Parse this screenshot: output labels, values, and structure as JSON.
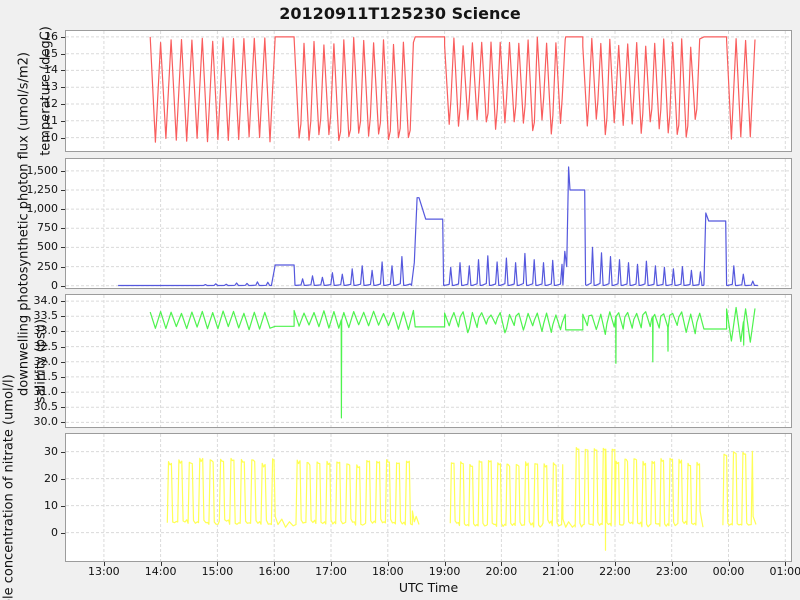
{
  "chart_data": {
    "type": "line",
    "title": "20120911T125230 Science",
    "xlabel": "UTC Time",
    "grid": true,
    "legend": "none",
    "colors": {
      "background": "#f0f0f0",
      "panel": "#ffffff",
      "grid": "#dadada",
      "border": "#9c9c9c",
      "text": "#111111"
    },
    "xlim_minutes": [
      20,
      786
    ],
    "x_ticks": [
      {
        "label": "13:00",
        "minutes": 60
      },
      {
        "label": "14:00",
        "minutes": 120
      },
      {
        "label": "15:00",
        "minutes": 180
      },
      {
        "label": "16:00",
        "minutes": 240
      },
      {
        "label": "17:00",
        "minutes": 300
      },
      {
        "label": "18:00",
        "minutes": 360
      },
      {
        "label": "19:00",
        "minutes": 420
      },
      {
        "label": "20:00",
        "minutes": 480
      },
      {
        "label": "21:00",
        "minutes": 540
      },
      {
        "label": "22:00",
        "minutes": 600
      },
      {
        "label": "23:00",
        "minutes": 660
      },
      {
        "label": "00:00",
        "minutes": 720
      },
      {
        "label": "01:00",
        "minutes": 780
      }
    ],
    "subplots": [
      {
        "id": "temperature",
        "ylabel": "temperature (degC)",
        "color": "#f95d5d",
        "ylim": [
          9.2,
          16.35
        ],
        "yticks": {
          "labels": [
            "16",
            "15",
            "14",
            "13",
            "12",
            "11",
            "10"
          ],
          "values": [
            16,
            15,
            14,
            13,
            12,
            11,
            10
          ]
        },
        "segments": [
          {
            "type": "osc",
            "t0": 109,
            "t1": 241,
            "period": 11,
            "hi": 16,
            "lo": 9.7,
            "jhi": 0.35,
            "jlo": 0.35
          },
          {
            "type": "flat",
            "t0": 241,
            "t1": 261,
            "v": 16
          },
          {
            "type": "osc",
            "t0": 261,
            "t1": 389,
            "period": 10.5,
            "hi": 16,
            "lo": 9.8,
            "jhi": 0.5,
            "jlo": 0.6,
            "mid": 0.8
          },
          {
            "type": "flat",
            "t0": 389,
            "t1": 420,
            "v": 16
          },
          {
            "type": "osc",
            "t0": 420,
            "t1": 548,
            "period": 9.8,
            "hi": 16,
            "lo": 10.2,
            "jhi": 0.6,
            "jlo": 0.9,
            "mid": 1.0
          },
          {
            "type": "flat",
            "t0": 548,
            "t1": 566,
            "v": 16
          },
          {
            "type": "osc",
            "t0": 566,
            "t1": 694,
            "period": 9.5,
            "hi": 16,
            "lo": 10.0,
            "jhi": 0.7,
            "jlo": 1.1,
            "mid": 1.1
          },
          {
            "type": "flat",
            "t0": 694,
            "t1": 718,
            "v": 16
          },
          {
            "type": "osc",
            "t0": 718,
            "t1": 752,
            "period": 10,
            "hi": 16,
            "lo": 9.8,
            "jhi": 0.3,
            "jlo": 0.3
          }
        ],
        "events": []
      },
      {
        "id": "par",
        "ylabel": "downwelling photosynthetic photon flux (umol/s/m2)",
        "color": "#5558dd",
        "ylim": [
          -30,
          1655
        ],
        "yticks": {
          "labels": [
            "1,500",
            "1,250",
            "1,000",
            "750",
            "500",
            "250",
            "0"
          ],
          "values": [
            1500,
            1250,
            1000,
            750,
            500,
            250,
            0
          ]
        },
        "segments": [
          {
            "type": "flat",
            "t0": 75,
            "t1": 160,
            "v": 3
          },
          {
            "type": "spikes",
            "t0": 160,
            "t1": 241,
            "period": 11,
            "base": 3,
            "peaks": [
              15,
              25,
              20,
              35,
              30,
              50,
              45,
              70
            ]
          },
          {
            "type": "path",
            "pts": [
              [
                241,
                270
              ],
              [
                261,
                270
              ],
              [
                262,
                5
              ]
            ]
          },
          {
            "type": "spikes",
            "t0": 263,
            "t1": 385,
            "period": 10.5,
            "base": 4,
            "peaks": [
              90,
              130,
              110,
              170,
              150,
              220,
              260,
              200,
              310,
              260,
              380,
              310
            ]
          },
          {
            "type": "path",
            "pts": [
              [
                385,
                5
              ],
              [
                388,
                300
              ],
              [
                391,
                1150
              ],
              [
                393,
                1150
              ],
              [
                400,
                870
              ],
              [
                418,
                870
              ],
              [
                419,
                5
              ]
            ]
          },
          {
            "type": "spikes",
            "t0": 420,
            "t1": 545,
            "period": 9.8,
            "base": 4,
            "peaks": [
              240,
              300,
              260,
              340,
              390,
              310,
              360,
              300,
              420,
              340,
              300,
              330,
              280
            ]
          },
          {
            "type": "path",
            "pts": [
              [
                545,
                10
              ],
              [
                547,
                450
              ],
              [
                549,
                250
              ],
              [
                551,
                1550
              ],
              [
                552.5,
                1250
              ],
              [
                568,
                1250
              ],
              [
                569,
                10
              ]
            ]
          },
          {
            "type": "spikes",
            "t0": 570,
            "t1": 694,
            "period": 9.5,
            "base": 4,
            "peaks": [
              500,
              430,
              380,
              340,
              300,
              280,
              320,
              260,
              240,
              220,
              250,
              200,
              180
            ]
          },
          {
            "type": "path",
            "pts": [
              [
                694,
                10
              ],
              [
                696,
                950
              ],
              [
                699,
                845
              ],
              [
                717,
                845
              ],
              [
                718,
                5
              ]
            ]
          },
          {
            "type": "spikes",
            "t0": 719,
            "t1": 748,
            "period": 10,
            "base": 3,
            "peaks": [
              260,
              150,
              60
            ]
          },
          {
            "type": "path",
            "pts": [
              [
                748,
                5
              ],
              [
                751,
                3
              ]
            ]
          }
        ],
        "events": []
      },
      {
        "id": "salinity",
        "ylabel": "salinity (psu)",
        "color": "#4ef34e",
        "ylim": [
          29.85,
          34.2
        ],
        "yticks": {
          "labels": [
            "34.0",
            "33.5",
            "33.0",
            "32.5",
            "32.0",
            "31.5",
            "31.0",
            "30.5",
            "30.0"
          ],
          "values": [
            34.0,
            33.5,
            33.0,
            32.5,
            32.0,
            31.5,
            31.0,
            30.5,
            30.0
          ]
        },
        "segments": [
          {
            "type": "osc",
            "t0": 109,
            "t1": 241,
            "period": 11,
            "hi": 33.68,
            "lo": 33.05,
            "jhi": 0.1,
            "jlo": 0.12
          },
          {
            "type": "flat",
            "t0": 241,
            "t1": 261,
            "v": 33.17
          },
          {
            "type": "osc",
            "t0": 261,
            "t1": 389,
            "period": 10.5,
            "hi": 33.7,
            "lo": 33.05,
            "jhi": 0.12,
            "jlo": 0.18
          },
          {
            "type": "flat",
            "t0": 389,
            "t1": 420,
            "v": 33.15
          },
          {
            "type": "osc",
            "t0": 420,
            "t1": 548,
            "period": 9.8,
            "hi": 33.65,
            "lo": 32.95,
            "jhi": 0.12,
            "jlo": 0.3,
            "mid": 0.25
          },
          {
            "type": "flat",
            "t0": 548,
            "t1": 566,
            "v": 33.05
          },
          {
            "type": "osc",
            "t0": 566,
            "t1": 694,
            "period": 9.5,
            "hi": 33.65,
            "lo": 32.9,
            "jhi": 0.12,
            "jlo": 0.35,
            "mid": 0.3
          },
          {
            "type": "flat",
            "t0": 694,
            "t1": 718,
            "v": 33.08
          },
          {
            "type": "osc",
            "t0": 718,
            "t1": 752,
            "period": 10,
            "hi": 33.8,
            "lo": 32.6,
            "jhi": 0.1,
            "jlo": 0.2
          }
        ],
        "events": [
          {
            "t": 311,
            "v": 30.15
          },
          {
            "t": 601,
            "v": 31.95
          },
          {
            "t": 640,
            "v": 32.0
          },
          {
            "t": 656,
            "v": 32.35
          },
          {
            "t": 736,
            "v": 32.55
          }
        ]
      },
      {
        "id": "nitrate",
        "ylabel": "mole concentration of nitrate (umol/l)",
        "color": "#ffff55",
        "ylim": [
          -10.5,
          36.5
        ],
        "yticks": {
          "labels": [
            "30",
            "20",
            "10",
            "0"
          ],
          "values": [
            30,
            20,
            10,
            0
          ]
        },
        "segments": [
          {
            "type": "osc",
            "t0": 127,
            "t1": 241,
            "period": 11,
            "hi": 27.5,
            "lo": 3,
            "jhi": 2.0,
            "jlo": 1.5,
            "shape": "square"
          },
          {
            "type": "path",
            "pts": [
              [
                241,
                6
              ],
              [
                244,
                3
              ],
              [
                248,
                5
              ],
              [
                252,
                2
              ],
              [
                256,
                4
              ],
              [
                260,
                2.5
              ],
              [
                263,
                3
              ]
            ]
          },
          {
            "type": "osc",
            "t0": 263,
            "t1": 386,
            "period": 10.5,
            "hi": 27,
            "lo": 2.5,
            "jhi": 2.0,
            "jlo": 1.5,
            "shape": "square"
          },
          {
            "type": "path",
            "pts": [
              [
                386,
                8
              ],
              [
                388,
                4
              ],
              [
                390,
                6
              ],
              [
                393,
                3
              ]
            ]
          },
          {
            "type": "gap"
          },
          {
            "type": "osc",
            "t0": 426,
            "t1": 545,
            "period": 9.8,
            "hi": 27,
            "lo": 2,
            "jhi": 2.0,
            "jlo": 1.5,
            "shape": "square"
          },
          {
            "type": "path",
            "pts": [
              [
                545,
                5
              ],
              [
                548,
                2
              ],
              [
                551,
                4
              ],
              [
                555,
                2
              ],
              [
                558,
                3
              ]
            ]
          },
          {
            "type": "osc",
            "t0": 558,
            "t1": 600,
            "period": 9.5,
            "hi": 31.5,
            "lo": 2,
            "jhi": 1.5,
            "jlo": 1.5,
            "shape": "square"
          },
          {
            "type": "osc",
            "t0": 600,
            "t1": 690,
            "period": 9.5,
            "hi": 27.5,
            "lo": 2,
            "jhi": 2.0,
            "jlo": 1.5,
            "shape": "square"
          },
          {
            "type": "path",
            "pts": [
              [
                690,
                8
              ],
              [
                692,
                4
              ],
              [
                693,
                2
              ]
            ]
          },
          {
            "type": "gap"
          },
          {
            "type": "osc",
            "t0": 714,
            "t1": 746,
            "period": 10,
            "hi": 30.5,
            "lo": 2,
            "jhi": 1.5,
            "jlo": 1.0,
            "shape": "square"
          },
          {
            "type": "path",
            "pts": [
              [
                746,
                6
              ],
              [
                749,
                3
              ]
            ]
          }
        ],
        "events": [
          {
            "t": 590,
            "v": -6.5
          }
        ]
      }
    ]
  }
}
